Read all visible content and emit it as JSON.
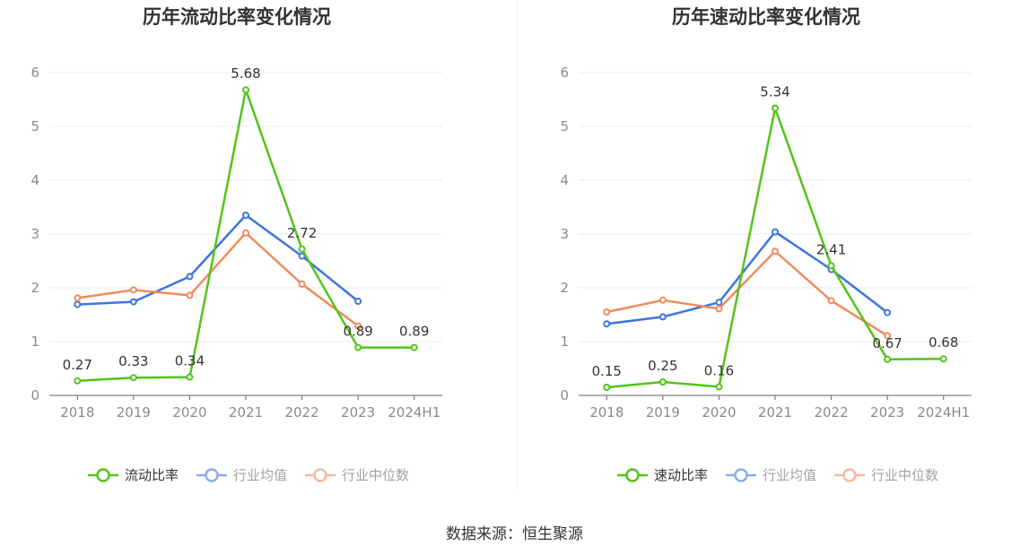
{
  "source_text": "数据来源：恒生聚源",
  "colors": {
    "main": "#52c41a",
    "avg": "#3e74e0",
    "median": "#f08b5e",
    "grid": "#e8ebf3",
    "axis": "#666666"
  },
  "chart_data": [
    {
      "type": "line",
      "title": "历年流动比率变化情况",
      "categories": [
        "2018",
        "2019",
        "2020",
        "2021",
        "2022",
        "2023",
        "2024H1"
      ],
      "ylim": [
        0,
        6
      ],
      "yticks": [
        "0",
        "1",
        "2",
        "3",
        "4",
        "5",
        "6"
      ],
      "grid": true,
      "legend_position": "bottom",
      "series": [
        {
          "name": "流动比率",
          "values": [
            0.27,
            0.33,
            0.34,
            5.68,
            2.72,
            0.89,
            0.89
          ],
          "labels": [
            "0.27",
            "0.33",
            "0.34",
            "5.68",
            "2.72",
            "0.89",
            "0.89"
          ]
        },
        {
          "name": "行业均值",
          "values": [
            1.69,
            1.74,
            2.21,
            3.35,
            2.59,
            1.75,
            null
          ]
        },
        {
          "name": "行业中位数",
          "values": [
            1.81,
            1.96,
            1.86,
            3.02,
            2.07,
            1.29,
            null
          ]
        }
      ]
    },
    {
      "type": "line",
      "title": "历年速动比率变化情况",
      "categories": [
        "2018",
        "2019",
        "2020",
        "2021",
        "2022",
        "2023",
        "2024H1"
      ],
      "ylim": [
        0,
        6
      ],
      "yticks": [
        "0",
        "1",
        "2",
        "3",
        "4",
        "5",
        "6"
      ],
      "grid": true,
      "legend_position": "bottom",
      "series": [
        {
          "name": "速动比率",
          "values": [
            0.15,
            0.25,
            0.16,
            5.34,
            2.41,
            0.67,
            0.68
          ],
          "labels": [
            "0.15",
            "0.25",
            "0.16",
            "5.34",
            "2.41",
            "0.67",
            "0.68"
          ]
        },
        {
          "name": "行业均值",
          "values": [
            1.33,
            1.46,
            1.73,
            3.04,
            2.34,
            1.54,
            null
          ]
        },
        {
          "name": "行业中位数",
          "values": [
            1.55,
            1.77,
            1.61,
            2.68,
            1.76,
            1.11,
            null
          ]
        }
      ]
    }
  ]
}
